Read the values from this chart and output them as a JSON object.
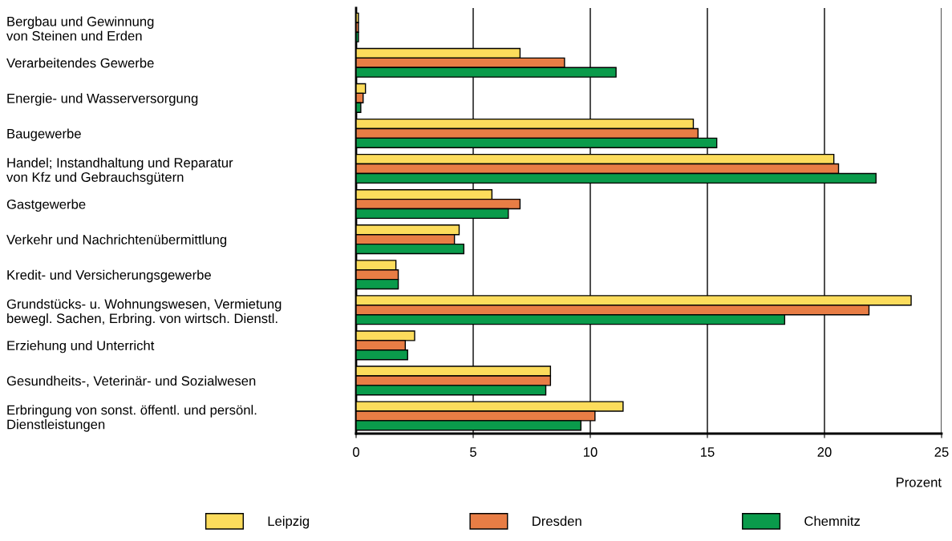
{
  "chart_data": {
    "type": "bar",
    "orientation": "horizontal",
    "xlabel": "Prozent",
    "categories": [
      "Bergbau und Gewinnung\nvon Steinen und Erden",
      "Verarbeitendes Gewerbe",
      "Energie- und Wasserversorgung",
      "Baugewerbe",
      "Handel; Instandhaltung und Reparatur\nvon Kfz und Gebrauchsgütern",
      "Gastgewerbe",
      "Verkehr und Nachrichtenübermittlung",
      "Kredit- und Versicherungsgewerbe",
      "Grundstücks- u. Wohnungswesen, Vermietung\nbewegl. Sachen, Erbring. von wirtsch. Dienstl.",
      "Erziehung und Unterricht",
      "Gesundheits-, Veterinär- und Sozialwesen",
      "Erbringung von sonst. öffentl. und persönl.\nDienstleistungen"
    ],
    "series": [
      {
        "name": "Leipzig",
        "color": "#fcdc5c",
        "values": [
          0.1,
          7.0,
          0.4,
          14.4,
          20.4,
          5.8,
          4.4,
          1.7,
          23.7,
          2.5,
          8.3,
          11.4
        ]
      },
      {
        "name": "Dresden",
        "color": "#e87d45",
        "values": [
          0.1,
          8.9,
          0.3,
          14.6,
          20.6,
          7.0,
          4.2,
          1.8,
          21.9,
          2.1,
          8.3,
          10.2
        ]
      },
      {
        "name": "Chemnitz",
        "color": "#0a9b4b",
        "values": [
          0.1,
          11.1,
          0.2,
          15.4,
          22.2,
          6.5,
          4.6,
          1.8,
          18.3,
          2.2,
          8.1,
          9.6
        ]
      }
    ],
    "xlim": [
      0,
      25
    ],
    "xticks": [
      0,
      5,
      10,
      15,
      20,
      25
    ],
    "grid": "x",
    "legend": "bottom"
  }
}
